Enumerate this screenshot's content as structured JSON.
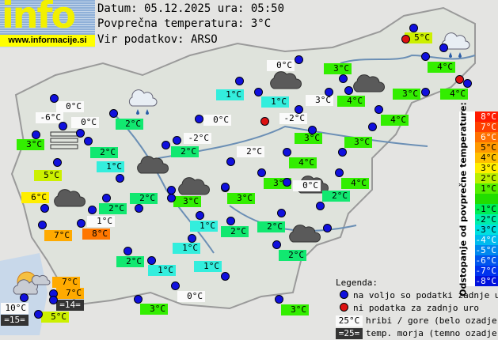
{
  "logo": {
    "word": "info",
    "url": "www.informacije.si"
  },
  "header": {
    "date_line": "Datum: 05.12.2025 ura: 05:50",
    "avg_line": "Povprečna temperatura: 3°C",
    "source_line": "Vir podatkov: ARSO"
  },
  "palette": {
    "w": "#fafafa",
    "g": "#33ee00",
    "m": "#11e870",
    "c": "#33eedd",
    "l": "#ccf000",
    "y": "#ffee00",
    "o": "#ffaa00",
    "r": "#ff7700",
    "d": "#333333",
    "dot_ok": "#1010dd",
    "dot_missing": "#dd1111"
  },
  "stations": [
    {
      "t": "5°C",
      "k": "l"
    },
    {
      "t": "0°C",
      "k": "w"
    },
    {
      "t": "3°C",
      "k": "g"
    },
    {
      "t": "4°C",
      "k": "g"
    },
    {
      "t": "1°C",
      "k": "c"
    },
    {
      "t": "3°C",
      "k": "w"
    },
    {
      "t": "4°C",
      "k": "g"
    },
    {
      "t": "3°C",
      "k": "g"
    },
    {
      "t": "4°C",
      "k": "g"
    },
    {
      "t": "-2°C",
      "k": "w"
    },
    {
      "t": "4°C",
      "k": "g"
    },
    {
      "t": "3°C",
      "k": "g"
    },
    {
      "t": "3°C",
      "k": "g"
    },
    {
      "t": "2°C",
      "k": "w"
    },
    {
      "t": "4°C",
      "k": "g"
    },
    {
      "t": "3°C",
      "k": "g"
    },
    {
      "t": "0°C",
      "k": "w"
    },
    {
      "t": "4°C",
      "k": "g"
    },
    {
      "t": "0°C",
      "k": "w"
    },
    {
      "t": "-6°C",
      "k": "w"
    },
    {
      "t": "0°C",
      "k": "w"
    },
    {
      "t": "3°C",
      "k": "g"
    },
    {
      "t": "2°C",
      "k": "m"
    },
    {
      "t": "2°C",
      "k": "m"
    },
    {
      "t": "1°C",
      "k": "c"
    },
    {
      "t": "5°C",
      "k": "l"
    },
    {
      "t": "1°C",
      "k": "c"
    },
    {
      "t": "0°C",
      "k": "w"
    },
    {
      "t": "-2°C",
      "k": "w"
    },
    {
      "t": "2°C",
      "k": "m"
    },
    {
      "t": "6°C",
      "k": "y"
    },
    {
      "t": "2°C",
      "k": "m"
    },
    {
      "t": "3°C",
      "k": "g"
    },
    {
      "t": "2°C",
      "k": "m"
    },
    {
      "t": "1°C",
      "k": "w"
    },
    {
      "t": "7°C",
      "k": "o"
    },
    {
      "t": "8°C",
      "k": "r"
    },
    {
      "t": "1°C",
      "k": "c"
    },
    {
      "t": "2°C",
      "k": "m"
    },
    {
      "t": "1°C",
      "k": "c"
    },
    {
      "t": "2°C",
      "k": "m"
    },
    {
      "t": "1°C",
      "k": "c"
    },
    {
      "t": "1°C",
      "k": "c"
    },
    {
      "t": "7°C",
      "k": "o"
    },
    {
      "t": "7°C",
      "k": "o"
    },
    {
      "t": "=14=",
      "k": "d"
    },
    {
      "t": "0°C",
      "k": "w"
    },
    {
      "t": "10°C",
      "k": "w"
    },
    {
      "t": "=15=",
      "k": "d"
    },
    {
      "t": "5°C",
      "k": "l"
    },
    {
      "t": "3°C",
      "k": "g"
    },
    {
      "t": "3°C",
      "k": "g"
    },
    {
      "t": "2°C",
      "k": "m"
    },
    {
      "t": "2°C",
      "k": "m"
    },
    {
      "t": "2°C",
      "k": "m"
    },
    {
      "t": "3°C",
      "k": "g"
    }
  ],
  "dots": [
    "ok",
    "ok",
    "missing",
    "ok",
    "ok",
    "ok",
    "ok",
    "ok",
    "ok",
    "ok",
    "missing",
    "ok",
    "ok",
    "ok",
    "ok",
    "ok",
    "ok",
    "ok",
    "ok",
    "ok",
    "ok",
    "ok",
    "ok",
    "ok",
    "ok",
    "ok",
    "ok",
    "ok",
    "ok",
    "ok",
    "ok",
    "ok",
    "ok",
    "ok",
    "ok",
    "ok",
    "ok",
    "ok",
    "ok",
    "ok",
    "ok",
    "ok",
    "ok",
    "ok",
    "ok",
    "ok",
    "ok",
    "ok",
    "ok",
    "ok",
    "ok",
    "ok",
    "ok",
    "ok",
    "ok",
    "ok",
    "ok",
    "ok",
    "ok",
    "ok",
    "missing",
    "ok",
    "ok"
  ],
  "weather_icons": [
    "cloud",
    "cloud",
    "cloud",
    "cloud",
    "cloud",
    "cloud",
    "cloud",
    "cloud-rain",
    "cloud-rain",
    "fog",
    "sun-cloud"
  ],
  "scale": {
    "title": "Odstopanje od povprečne temperature:",
    "rows": [
      {
        "label": "8°C",
        "color": "#ff1a00"
      },
      {
        "label": "7°C",
        "color": "#ff4000"
      },
      {
        "label": "6°C",
        "color": "#ff7000"
      },
      {
        "label": "5°C",
        "color": "#ff9900"
      },
      {
        "label": "4°C",
        "color": "#ffc000"
      },
      {
        "label": "3°C",
        "color": "#ffee00"
      },
      {
        "label": "2°C",
        "color": "#bbee00"
      },
      {
        "label": "1°C",
        "color": "#55ee00"
      },
      {
        "label": "",
        "color": "#22dd00"
      },
      {
        "label": "-1°C",
        "color": "#00ee55"
      },
      {
        "label": "-2°C",
        "color": "#00eeaa"
      },
      {
        "label": "-3°C",
        "color": "#00e0e0"
      },
      {
        "label": "-4°C",
        "color": "#00bbee"
      },
      {
        "label": "-5°C",
        "color": "#0088ee"
      },
      {
        "label": "-6°C",
        "color": "#0055ee"
      },
      {
        "label": "-7°C",
        "color": "#0033ee"
      },
      {
        "label": "-8°C",
        "color": "#0011dd"
      }
    ],
    "light_text_rows": [
      0,
      1,
      2,
      12,
      13,
      14,
      15,
      16
    ]
  },
  "legend": {
    "title": "Legenda:",
    "available": "na voljo so podatki zadnje ure",
    "missing": "ni podatka za zadnjo uro",
    "mountain_sample": "25°C",
    "mountain_text": "hribi / gore (belo ozadje)",
    "sea_sample": "=25=",
    "sea_text": "temp. morja (temno ozadje)"
  }
}
